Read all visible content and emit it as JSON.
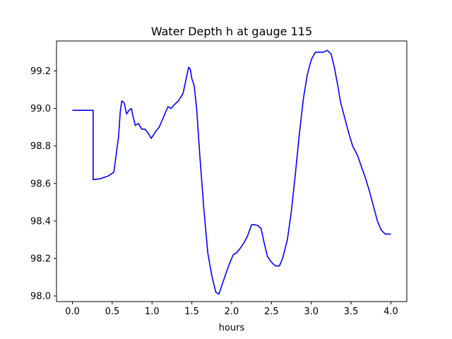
{
  "chart_data": {
    "type": "line",
    "title": "Water Depth h at gauge 115",
    "xlabel": "hours",
    "ylabel": "",
    "xlim": [
      -0.2,
      4.2
    ],
    "ylim": [
      97.97,
      99.36
    ],
    "xticks": [
      0.0,
      0.5,
      1.0,
      1.5,
      2.0,
      2.5,
      3.0,
      3.5,
      4.0
    ],
    "xtick_labels": [
      "0.0",
      "0.5",
      "1.0",
      "1.5",
      "2.0",
      "2.5",
      "3.0",
      "3.5",
      "4.0"
    ],
    "yticks": [
      98.0,
      98.2,
      98.4,
      98.6,
      98.8,
      99.0,
      99.2
    ],
    "ytick_labels": [
      "98.0",
      "98.2",
      "98.4",
      "98.6",
      "98.8",
      "99.0",
      "99.2"
    ],
    "grid": false,
    "series": [
      {
        "color": "#0000ff",
        "x": [
          0.0,
          0.26,
          0.26,
          0.35,
          0.45,
          0.52,
          0.58,
          0.6,
          0.62,
          0.65,
          0.68,
          0.71,
          0.74,
          0.76,
          0.79,
          0.83,
          0.87,
          0.91,
          0.95,
          0.99,
          1.02,
          1.05,
          1.09,
          1.15,
          1.2,
          1.24,
          1.28,
          1.33,
          1.39,
          1.43,
          1.46,
          1.48,
          1.5,
          1.53,
          1.56,
          1.6,
          1.65,
          1.7,
          1.75,
          1.8,
          1.84,
          1.88,
          1.92,
          1.97,
          2.02,
          2.06,
          2.1,
          2.15,
          2.2,
          2.25,
          2.29,
          2.33,
          2.37,
          2.41,
          2.45,
          2.5,
          2.55,
          2.6,
          2.64,
          2.7,
          2.75,
          2.8,
          2.85,
          2.9,
          2.95,
          3.0,
          3.05,
          3.1,
          3.15,
          3.2,
          3.25,
          3.29,
          3.33,
          3.37,
          3.42,
          3.47,
          3.52,
          3.58,
          3.63,
          3.68,
          3.73,
          3.78,
          3.83,
          3.88,
          3.93,
          3.97,
          4.0
        ],
        "y": [
          98.99,
          98.99,
          98.62,
          98.625,
          98.64,
          98.66,
          98.85,
          98.98,
          99.04,
          99.03,
          98.97,
          98.99,
          99.0,
          98.96,
          98.91,
          98.92,
          98.89,
          98.89,
          98.87,
          98.84,
          98.86,
          98.88,
          98.9,
          98.96,
          99.01,
          99.0,
          99.02,
          99.04,
          99.08,
          99.16,
          99.22,
          99.21,
          99.16,
          99.12,
          99.0,
          98.75,
          98.47,
          98.23,
          98.11,
          98.02,
          98.01,
          98.06,
          98.11,
          98.17,
          98.22,
          98.23,
          98.25,
          98.28,
          98.32,
          98.38,
          98.38,
          98.375,
          98.36,
          98.28,
          98.21,
          98.18,
          98.16,
          98.16,
          98.2,
          98.3,
          98.45,
          98.65,
          98.86,
          99.05,
          99.18,
          99.26,
          99.3,
          99.3,
          99.3,
          99.31,
          99.29,
          99.22,
          99.13,
          99.03,
          98.95,
          98.87,
          98.8,
          98.75,
          98.69,
          98.63,
          98.56,
          98.48,
          98.4,
          98.35,
          98.33,
          98.33,
          98.33
        ]
      }
    ]
  }
}
